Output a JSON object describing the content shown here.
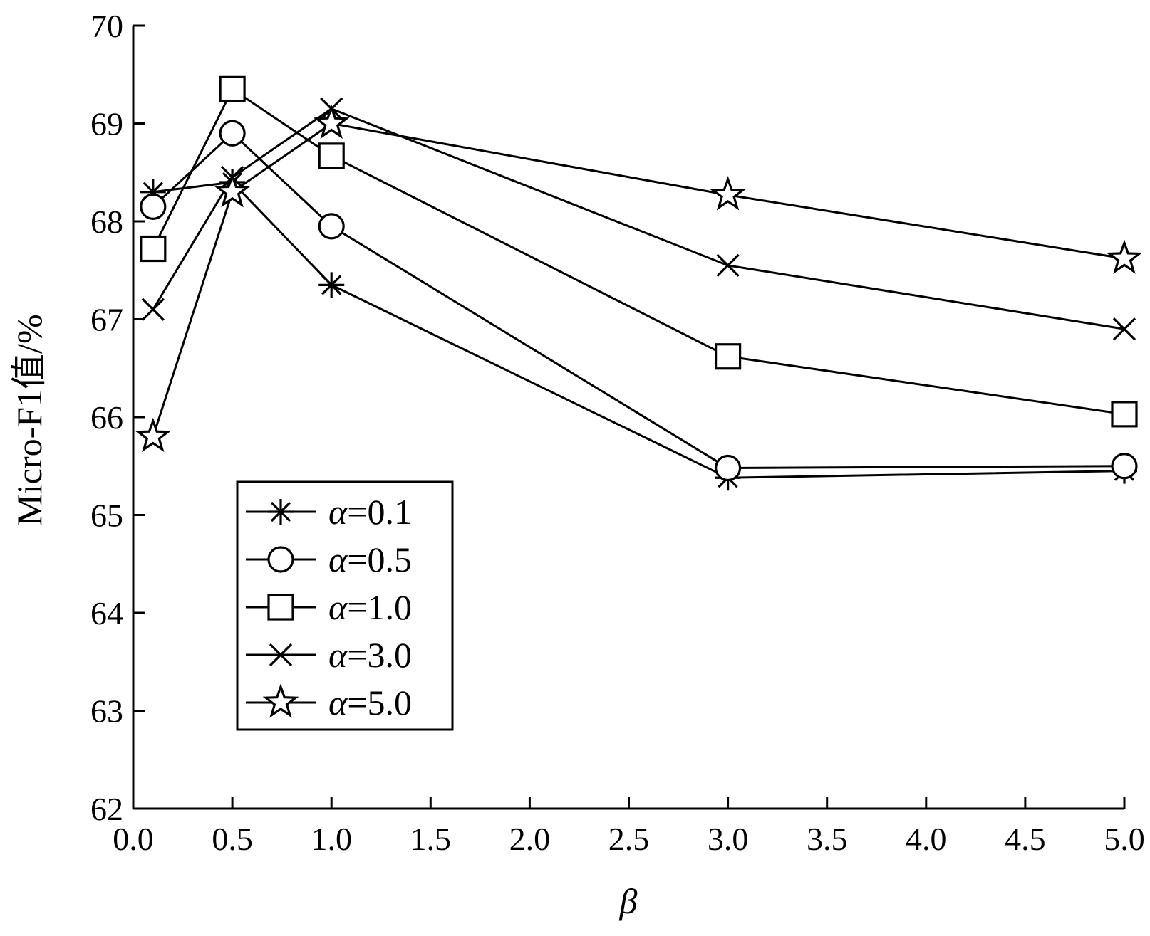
{
  "chart_data": {
    "type": "line",
    "title": "",
    "xlabel": "β",
    "ylabel": "Micro-F1值/%",
    "xlim": [
      0.0,
      5.0
    ],
    "ylim": [
      62,
      70
    ],
    "xticks": [
      "0.0",
      "0.5",
      "1.0",
      "1.5",
      "2.0",
      "2.5",
      "3.0",
      "3.5",
      "4.0",
      "4.5",
      "5.0"
    ],
    "yticks": [
      "62",
      "63",
      "64",
      "65",
      "66",
      "67",
      "68",
      "69",
      "70"
    ],
    "x": [
      0.1,
      0.5,
      1.0,
      3.0,
      5.0
    ],
    "grid": false,
    "legend_position": "bottom-left",
    "series": [
      {
        "name": "α=0.1",
        "marker": "asterisk",
        "values": [
          68.3,
          68.4,
          67.35,
          65.38,
          65.45
        ]
      },
      {
        "name": "α=0.5",
        "marker": "circle",
        "values": [
          68.15,
          68.9,
          67.95,
          65.48,
          65.5
        ]
      },
      {
        "name": "α=1.0",
        "marker": "square",
        "values": [
          67.72,
          69.35,
          68.67,
          66.62,
          66.03
        ]
      },
      {
        "name": "α=3.0",
        "marker": "x",
        "values": [
          67.1,
          68.45,
          69.15,
          67.55,
          66.9
        ]
      },
      {
        "name": "α=5.0",
        "marker": "star",
        "values": [
          65.8,
          68.3,
          69.0,
          68.27,
          67.62
        ]
      }
    ]
  }
}
